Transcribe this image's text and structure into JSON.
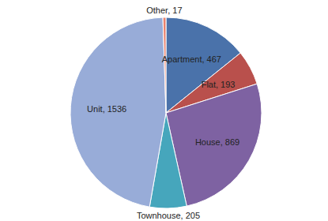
{
  "chart_data": {
    "type": "pie",
    "categories": [
      "Apartment",
      "Flat",
      "House",
      "Townhouse",
      "Unit",
      "Other"
    ],
    "values": [
      467,
      193,
      869,
      205,
      1536,
      17
    ],
    "value_labels": [
      "Apartment, 467",
      "Flat, 193",
      "House, 869",
      "Townhouse, 205",
      "Unit, 1536",
      "Other, 17"
    ],
    "colors": [
      "#4a72aa",
      "#b9504c",
      "#7e62a2",
      "#46a6bc",
      "#98acd8",
      "#e9826e"
    ],
    "data_labels": true
  }
}
